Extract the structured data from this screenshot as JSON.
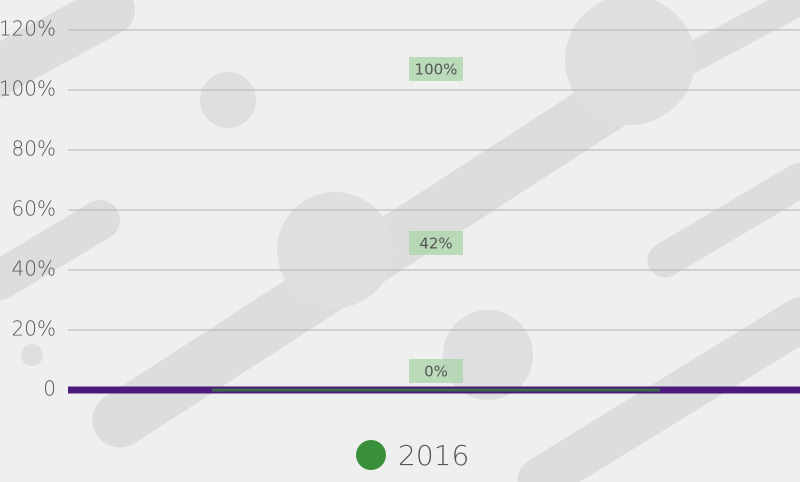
{
  "chart_data": {
    "type": "bar",
    "categories": [
      null
    ],
    "series": [
      {
        "name": "2016",
        "color": "#3a8f3a",
        "values": [
          0
        ],
        "value_labels": [
          "0%"
        ]
      }
    ],
    "annotations": [
      {
        "value": 100,
        "label": "100%"
      },
      {
        "value": 42,
        "label": "42%"
      }
    ],
    "ylim": [
      0,
      120
    ],
    "yticks": [
      {
        "value": 0,
        "label": "0"
      },
      {
        "value": 20,
        "label": "20%"
      },
      {
        "value": 40,
        "label": "40%"
      },
      {
        "value": 60,
        "label": "60%"
      },
      {
        "value": 80,
        "label": "80%"
      },
      {
        "value": 100,
        "label": "100%"
      },
      {
        "value": 120,
        "label": "120%"
      }
    ],
    "grid": true,
    "legend": "bottom",
    "axis_color": "#4b1a7a"
  }
}
